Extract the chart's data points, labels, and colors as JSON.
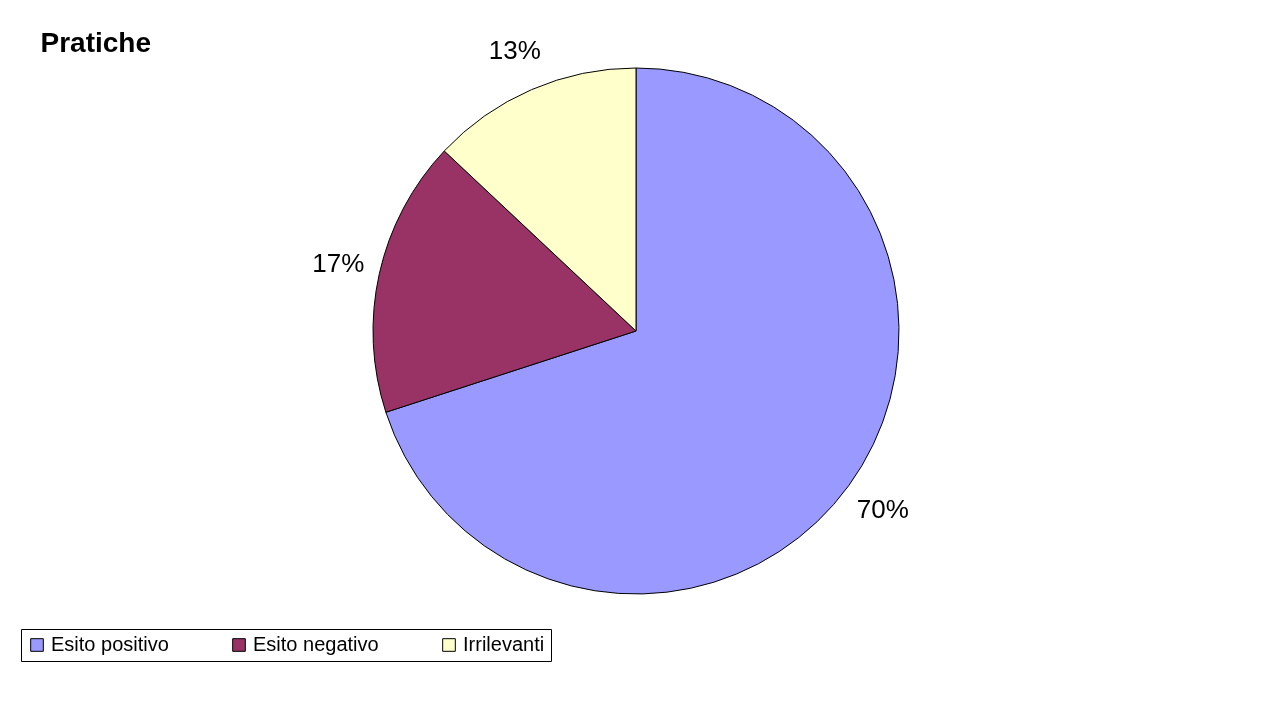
{
  "chart_data": {
    "type": "pie",
    "title": "Pratiche",
    "categories": [
      "Esito positivo",
      "Esito negativo",
      "Irrilevanti"
    ],
    "values": [
      70,
      17,
      13
    ],
    "colors": [
      "#9999ff",
      "#993366",
      "#ffffcc"
    ],
    "value_labels": [
      "70%",
      "17%",
      "13%"
    ],
    "legend": "bottom"
  }
}
